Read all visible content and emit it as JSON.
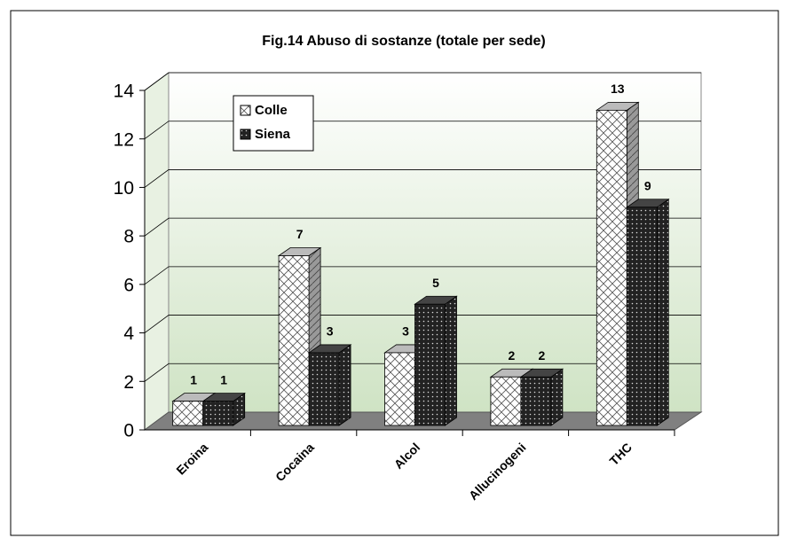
{
  "chart_data": {
    "type": "bar3d",
    "title": "Fig.14 Abuso di sostanze (totale per sede)",
    "categories": [
      "Eroina",
      "Cocaina",
      "Alcol",
      "Allucinogeni",
      "THC"
    ],
    "series": [
      {
        "name": "Colle",
        "color": "#ffffff",
        "values": [
          1,
          7,
          3,
          2,
          13
        ]
      },
      {
        "name": "Siena",
        "color": "#222222",
        "values": [
          1,
          3,
          5,
          2,
          9
        ]
      }
    ],
    "ylim": [
      0,
      14
    ],
    "yticks": [
      0,
      2,
      4,
      6,
      8,
      10,
      12,
      14
    ],
    "grid": true,
    "legend": "top-left"
  }
}
